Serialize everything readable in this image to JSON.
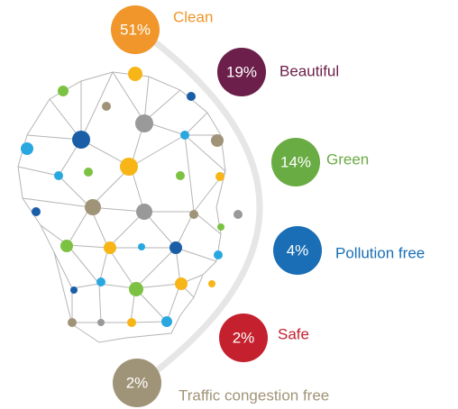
{
  "items": [
    {
      "value": "51%",
      "label": "Clean",
      "color": "#f0962a"
    },
    {
      "value": "19%",
      "label": "Beautiful",
      "color": "#6b1f4a"
    },
    {
      "value": "14%",
      "label": "Green",
      "color": "#6aac44"
    },
    {
      "value": "4%",
      "label": "Pollution free",
      "color": "#1a6eb5"
    },
    {
      "value": "2%",
      "label": "Safe",
      "color": "#c4202e"
    },
    {
      "value": "2%",
      "label": "Traffic congestion free",
      "color": "#a09478"
    }
  ]
}
